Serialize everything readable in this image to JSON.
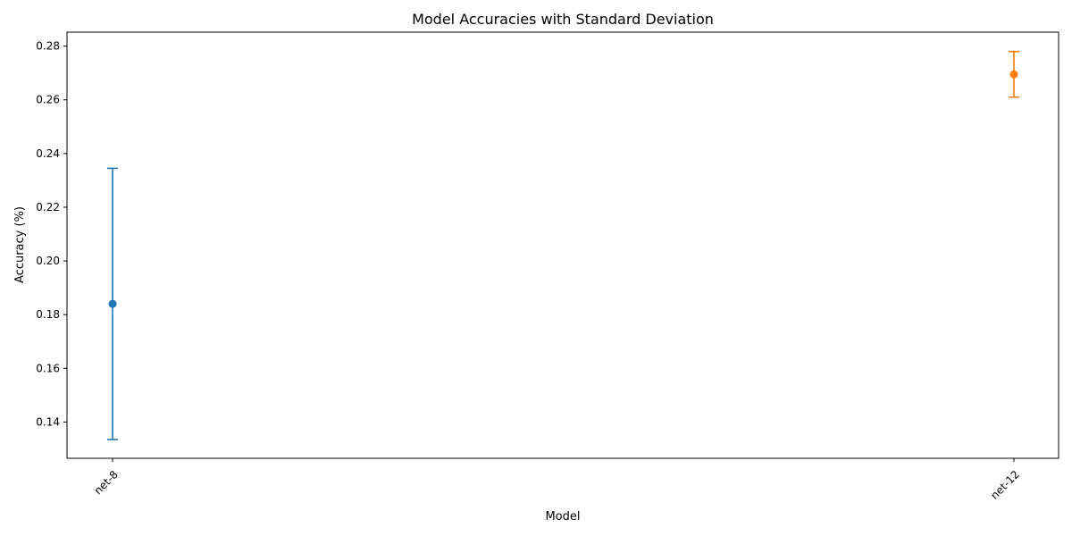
{
  "chart_data": {
    "type": "scatter",
    "title": "Model Accuracies with Standard Deviation",
    "xlabel": "Model",
    "ylabel": "Accuracy (%)",
    "categories": [
      "net-8",
      "net-12"
    ],
    "points": [
      {
        "category": "net-8",
        "mean": 0.184,
        "lower": 0.1335,
        "upper": 0.2345,
        "color": "#1f77b4"
      },
      {
        "category": "net-12",
        "mean": 0.2695,
        "lower": 0.261,
        "upper": 0.278,
        "color": "#ff7f0e"
      }
    ],
    "ylim": [
      0.1265,
      0.2852
    ],
    "yticks": [
      0.14,
      0.16,
      0.18,
      0.2,
      0.22,
      0.24,
      0.26,
      0.28
    ],
    "ytick_labels": [
      "0.14",
      "0.16",
      "0.18",
      "0.20",
      "0.22",
      "0.24",
      "0.26",
      "0.28"
    ],
    "grid": false,
    "xtick_rotation": "45 degrees"
  }
}
